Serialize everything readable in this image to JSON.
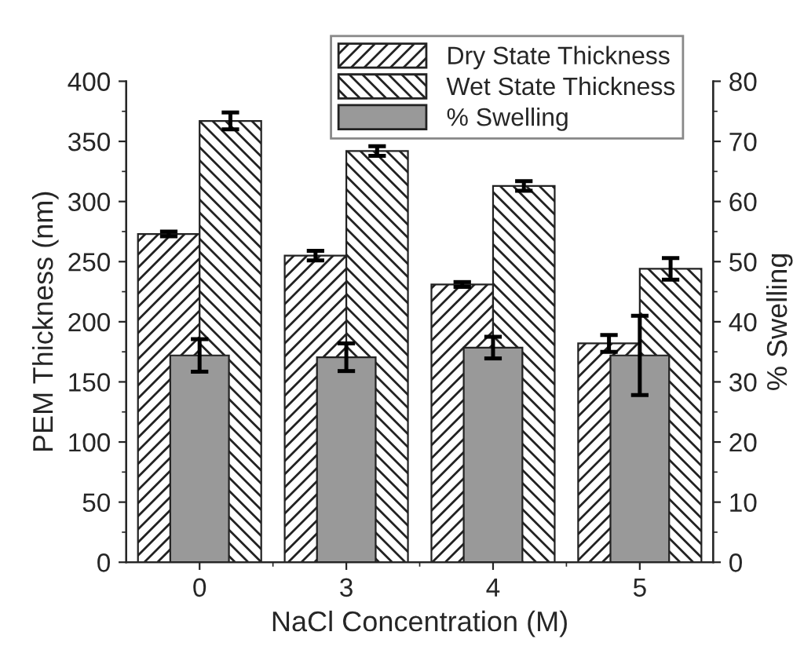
{
  "chart_data": {
    "type": "bar",
    "xlabel": "NaCl Concentration (M)",
    "ylabel": "PEM Thickness (nm)",
    "y2label": "% Swelling",
    "categories": [
      "0",
      "3",
      "4",
      "5"
    ],
    "series": [
      {
        "name": "Dry State Thickness",
        "color": "#222222",
        "values": [
          273,
          255,
          231,
          182
        ],
        "errors": [
          2,
          4,
          2,
          7
        ]
      },
      {
        "name": "Wet State Thickness",
        "color": "#222222",
        "values": [
          367,
          342,
          313,
          244
        ],
        "errors": [
          7,
          4,
          4,
          9
        ]
      },
      {
        "name": "% Swelling",
        "color": "#999999",
        "axis": "y2",
        "values": [
          34.4,
          34.1,
          35.7,
          34.4
        ],
        "errors": [
          2.7,
          2.3,
          1.8,
          6.6
        ]
      }
    ],
    "ylim": [
      0,
      400
    ],
    "yticks": [
      0,
      50,
      100,
      150,
      200,
      250,
      300,
      350,
      400
    ],
    "y2lim": [
      0,
      80
    ],
    "y2ticks": [
      0,
      10,
      20,
      30,
      40,
      50,
      60,
      70,
      80
    ],
    "legend": "top right",
    "grid": false
  }
}
